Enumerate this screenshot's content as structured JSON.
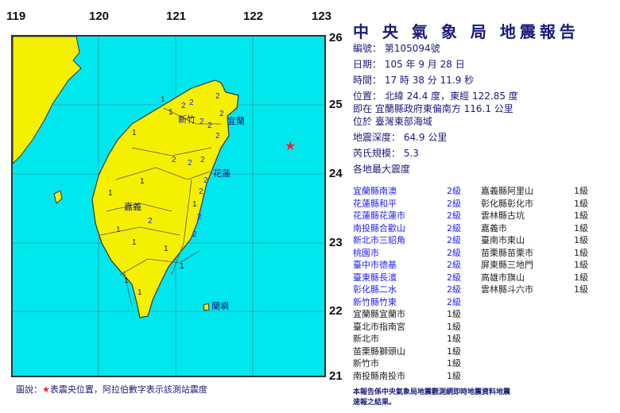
{
  "title": "中 央 氣 象 局 地震報告",
  "report": {
    "number": "編號： 第105094號",
    "date": "日期： 105 年 9 月 28 日",
    "time": "時間： 17 時 38 分 11.9 秒",
    "position": "位置： 北緯 24.4 度，東經 122.85 度",
    "relative": "即在 宜蘭縣政府東偏南方 116.1 公里",
    "region": "位於 臺灣東部海域",
    "depth": "地震深度： 64.9 公里",
    "magnitude": "芮氏規模： 5.3",
    "intensity_header": "各地最大震度"
  },
  "map": {
    "lon_ticks": [
      "119",
      "120",
      "121",
      "122",
      "123"
    ],
    "lat_ticks": [
      "26",
      "25",
      "24",
      "23",
      "22",
      "21"
    ],
    "labels": [
      "新竹",
      "宜蘭",
      "花蓮",
      "嘉義",
      "蘭嶼"
    ],
    "epicenter": {
      "lat": 24.4,
      "lon": 122.85
    },
    "sea_color": "#00e8ee",
    "land_color": "#f5f000",
    "epicenter_color": "#ff2020"
  },
  "intensities_col1": [
    {
      "station": "宜蘭縣南澳",
      "level": "2級"
    },
    {
      "station": "花蓮縣和平",
      "level": "2級"
    },
    {
      "station": "花蓮縣花蓮市",
      "level": "2級"
    },
    {
      "station": "南投縣合歡山",
      "level": "2級"
    },
    {
      "station": "新北市三貂角",
      "level": "2級"
    },
    {
      "station": "桃園市",
      "level": "2級"
    },
    {
      "station": "臺中市德基",
      "level": "2級"
    },
    {
      "station": "臺東縣長濱",
      "level": "2級"
    },
    {
      "station": "彰化縣二水",
      "level": "2級"
    },
    {
      "station": "新竹縣竹東",
      "level": "2級"
    },
    {
      "station": "宜蘭縣宜蘭市",
      "level": "1級"
    },
    {
      "station": "臺北市指南宮",
      "level": "1級"
    },
    {
      "station": "新北市",
      "level": "1級"
    },
    {
      "station": "苗栗縣獅頭山",
      "level": "1級"
    },
    {
      "station": "新竹市",
      "level": "1級"
    },
    {
      "station": "南投縣南投市",
      "level": "1級"
    }
  ],
  "intensities_col2": [
    {
      "station": "嘉義縣阿里山",
      "level": "1級"
    },
    {
      "station": "彰化縣彰化市",
      "level": "1級"
    },
    {
      "station": "雲林縣古坑",
      "level": "1級"
    },
    {
      "station": "嘉義市",
      "level": "1級"
    },
    {
      "station": "臺南市東山",
      "level": "1級"
    },
    {
      "station": "苗栗縣苗栗市",
      "level": "1級"
    },
    {
      "station": "屏東縣三地門",
      "level": "1級"
    },
    {
      "station": "高雄市旗山",
      "level": "1級"
    },
    {
      "station": "雲林縣斗六市",
      "level": "1級"
    }
  ],
  "legend": {
    "prefix": "圖說：",
    "star": "★",
    "text": "表震央位置，阿拉伯數字表示該測站震度"
  },
  "footer": "本報告係中央氣象局地震觀測網即時地震資料地震速報之結果。"
}
